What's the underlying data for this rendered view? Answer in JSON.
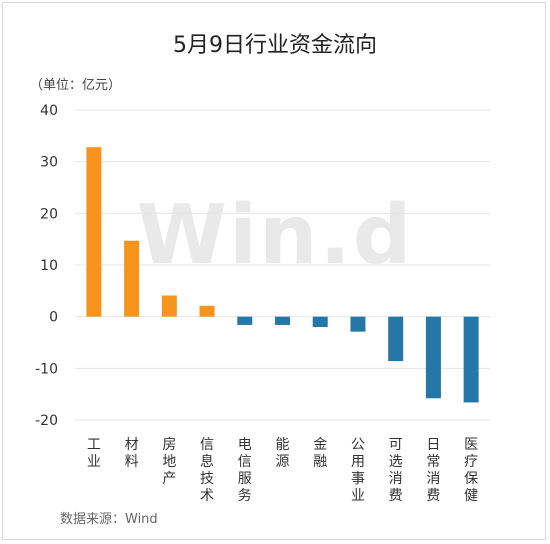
{
  "chart_data": {
    "type": "bar",
    "title": "5月9日行业资金流向",
    "ylabel": "（单位：亿元）",
    "source": "数据来源：Wind",
    "watermark": "Win.d",
    "categories": [
      "工业",
      "材料",
      "房地产",
      "信息技术",
      "电信服务",
      "能源",
      "金融",
      "公用事业",
      "可选消费",
      "日常消费",
      "医疗保健"
    ],
    "values": [
      32.8,
      14.7,
      4.1,
      2.1,
      -1.6,
      -1.6,
      -2.0,
      -2.9,
      -8.6,
      -15.8,
      -16.6
    ],
    "ylim": [
      -20,
      40
    ],
    "yticks": [
      -20,
      -10,
      0,
      10,
      20,
      30,
      40
    ],
    "grid": true,
    "colors": {
      "positive": "#f7941d",
      "negative": "#2577a7"
    }
  }
}
